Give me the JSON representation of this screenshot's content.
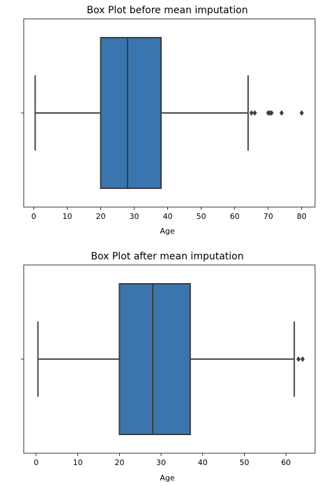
{
  "chart_data": [
    {
      "type": "box",
      "title": "Box Plot before mean imputation",
      "xlabel": "Age",
      "xlim": [
        -3,
        84
      ],
      "xticks": [
        0,
        10,
        20,
        30,
        40,
        50,
        60,
        70,
        80
      ],
      "box": {
        "whisker_low": 0.42,
        "q1": 20,
        "median": 28,
        "q3": 38,
        "whisker_high": 64
      },
      "outliers": [
        65,
        66,
        70,
        70.5,
        71,
        74,
        80
      ],
      "color": "#3a75af",
      "outlier_color": "#3d3d3d"
    },
    {
      "type": "box",
      "title": "Box Plot after mean imputation",
      "xlabel": "Age",
      "xlim": [
        -3,
        67
      ],
      "xticks": [
        0,
        10,
        20,
        30,
        40,
        50,
        60
      ],
      "box": {
        "whisker_low": 0.42,
        "q1": 20,
        "median": 28,
        "q3": 37,
        "whisker_high": 62
      },
      "outliers": [
        63,
        64
      ],
      "color": "#3a75af",
      "outlier_color": "#3d3d3d"
    }
  ]
}
